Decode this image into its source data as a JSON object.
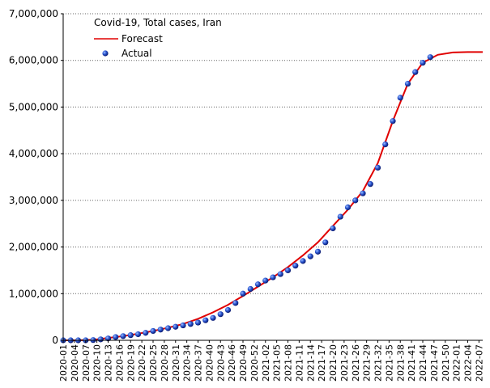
{
  "chart_data": {
    "type": "line_scatter",
    "title": "Covid-19, Total cases, Iran",
    "xlim": [
      0,
      112
    ],
    "xticks": [
      {
        "value": 0,
        "label": "2020-01"
      },
      {
        "value": 3,
        "label": "2020-04"
      },
      {
        "value": 6,
        "label": "2020-07"
      },
      {
        "value": 9,
        "label": "2020-10"
      },
      {
        "value": 12,
        "label": "2020-13"
      },
      {
        "value": 15,
        "label": "2020-16"
      },
      {
        "value": 18,
        "label": "2020-19"
      },
      {
        "value": 21,
        "label": "2020-22"
      },
      {
        "value": 24,
        "label": "2020-25"
      },
      {
        "value": 27,
        "label": "2020-28"
      },
      {
        "value": 30,
        "label": "2020-31"
      },
      {
        "value": 33,
        "label": "2020-34"
      },
      {
        "value": 36,
        "label": "2020-37"
      },
      {
        "value": 39,
        "label": "2020-40"
      },
      {
        "value": 42,
        "label": "2020-43"
      },
      {
        "value": 45,
        "label": "2020-46"
      },
      {
        "value": 48,
        "label": "2020-49"
      },
      {
        "value": 51,
        "label": "2020-52"
      },
      {
        "value": 54,
        "label": "2021-02"
      },
      {
        "value": 57,
        "label": "2021-05"
      },
      {
        "value": 60,
        "label": "2021-08"
      },
      {
        "value": 63,
        "label": "2021-11"
      },
      {
        "value": 66,
        "label": "2021-14"
      },
      {
        "value": 69,
        "label": "2021-17"
      },
      {
        "value": 72,
        "label": "2021-20"
      },
      {
        "value": 75,
        "label": "2021-23"
      },
      {
        "value": 78,
        "label": "2021-26"
      },
      {
        "value": 81,
        "label": "2021-29"
      },
      {
        "value": 84,
        "label": "2021-32"
      },
      {
        "value": 87,
        "label": "2021-35"
      },
      {
        "value": 90,
        "label": "2021-38"
      },
      {
        "value": 93,
        "label": "2021-41"
      },
      {
        "value": 96,
        "label": "2021-44"
      },
      {
        "value": 99,
        "label": "2021-47"
      },
      {
        "value": 102,
        "label": "2021-50"
      },
      {
        "value": 105,
        "label": "2022-01"
      },
      {
        "value": 108,
        "label": "2022-04"
      },
      {
        "value": 111,
        "label": "2022-07"
      }
    ],
    "ylim": [
      0,
      7000000
    ],
    "yticks": [
      0,
      {
        "value": 1000000,
        "label": "1,000,000"
      },
      {
        "value": 2000000,
        "label": "2,000,000"
      },
      {
        "value": 3000000,
        "label": "3,000,000"
      },
      {
        "value": 4000000,
        "label": "4,000,000"
      },
      {
        "value": 5000000,
        "label": "5,000,000"
      },
      {
        "value": 6000000,
        "label": "6,000,000"
      },
      {
        "value": 7000000,
        "label": "7,000,000"
      }
    ],
    "grid": true,
    "series": [
      {
        "name": "Forecast",
        "kind": "line",
        "color": "#e00000",
        "x": [
          0,
          4,
          8,
          12,
          16,
          20,
          24,
          28,
          32,
          36,
          40,
          44,
          48,
          52,
          56,
          60,
          64,
          68,
          72,
          76,
          80,
          84,
          88,
          92,
          96,
          100,
          104,
          108,
          112
        ],
        "values": [
          0,
          0,
          10000,
          50000,
          90000,
          140000,
          200000,
          270000,
          350000,
          460000,
          600000,
          760000,
          950000,
          1150000,
          1350000,
          1570000,
          1820000,
          2100000,
          2450000,
          2800000,
          3200000,
          3800000,
          4700000,
          5500000,
          5950000,
          6120000,
          6170000,
          6180000,
          6180000
        ]
      },
      {
        "name": "Actual",
        "kind": "scatter",
        "color": "#1f3fbf",
        "x": [
          0,
          2,
          4,
          6,
          8,
          10,
          12,
          14,
          16,
          18,
          20,
          22,
          24,
          26,
          28,
          30,
          32,
          34,
          36,
          38,
          40,
          42,
          44,
          46,
          48,
          50,
          52,
          54,
          56,
          58,
          60,
          62,
          64,
          66,
          68,
          70,
          72,
          74,
          76,
          78,
          80,
          82,
          84,
          86,
          88,
          90,
          92,
          94,
          96,
          98
        ],
        "values": [
          0,
          0,
          0,
          0,
          5000,
          20000,
          40000,
          70000,
          90000,
          110000,
          130000,
          160000,
          200000,
          230000,
          260000,
          290000,
          320000,
          350000,
          380000,
          430000,
          480000,
          560000,
          650000,
          800000,
          1000000,
          1100000,
          1200000,
          1280000,
          1350000,
          1420000,
          1500000,
          1600000,
          1700000,
          1800000,
          1900000,
          2100000,
          2400000,
          2650000,
          2850000,
          3000000,
          3150000,
          3350000,
          3700000,
          4200000,
          4700000,
          5200000,
          5500000,
          5750000,
          5950000,
          6070000
        ]
      }
    ]
  }
}
